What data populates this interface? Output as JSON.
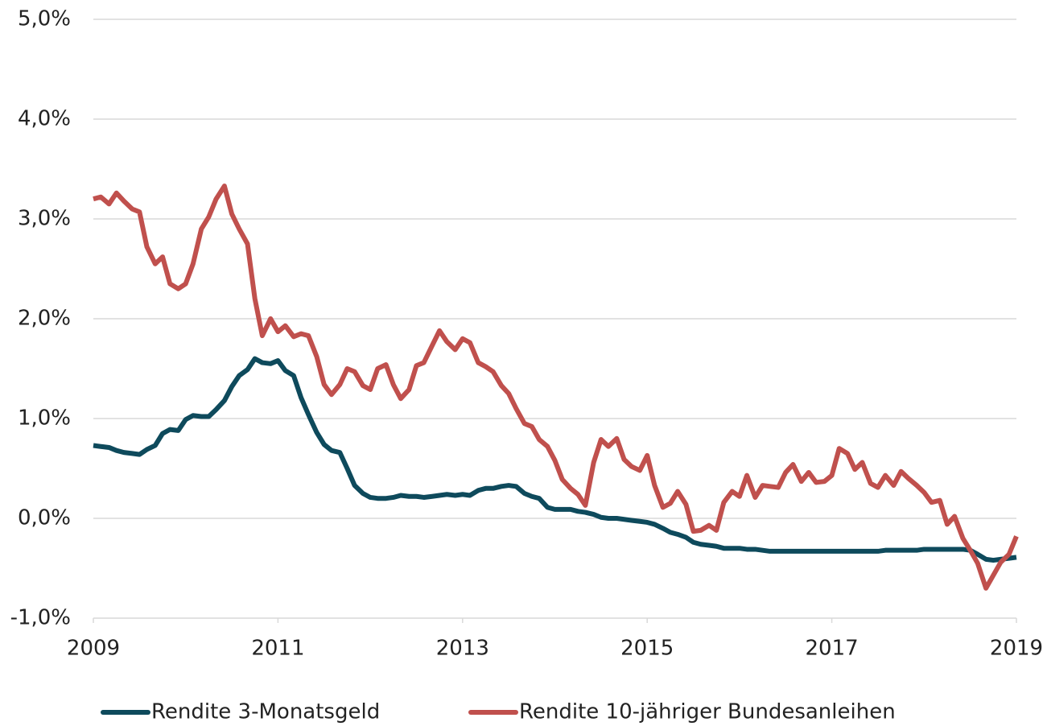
{
  "chart_data": {
    "type": "line",
    "x": [
      2009,
      2009.08,
      2009.17,
      2009.25,
      2009.33,
      2009.42,
      2009.5,
      2009.58,
      2009.67,
      2009.75,
      2009.83,
      2009.92,
      2010,
      2010.08,
      2010.17,
      2010.25,
      2010.33,
      2010.42,
      2010.5,
      2010.58,
      2010.67,
      2010.75,
      2010.83,
      2010.92,
      2011,
      2011.08,
      2011.17,
      2011.25,
      2011.33,
      2011.42,
      2011.5,
      2011.58,
      2011.67,
      2011.75,
      2011.83,
      2011.92,
      2012,
      2012.08,
      2012.17,
      2012.25,
      2012.33,
      2012.42,
      2012.5,
      2012.58,
      2012.67,
      2012.75,
      2012.83,
      2012.92,
      2013,
      2013.08,
      2013.17,
      2013.25,
      2013.33,
      2013.42,
      2013.5,
      2013.58,
      2013.67,
      2013.75,
      2013.83,
      2013.92,
      2014,
      2014.08,
      2014.17,
      2014.25,
      2014.33,
      2014.42,
      2014.5,
      2014.58,
      2014.67,
      2014.75,
      2014.83,
      2014.92,
      2015,
      2015.08,
      2015.17,
      2015.25,
      2015.33,
      2015.42,
      2015.5,
      2015.58,
      2015.67,
      2015.75,
      2015.83,
      2015.92,
      2016,
      2016.08,
      2016.17,
      2016.25,
      2016.33,
      2016.42,
      2016.5,
      2016.58,
      2016.67,
      2016.75,
      2016.83,
      2016.92,
      2017,
      2017.08,
      2017.17,
      2017.25,
      2017.33,
      2017.42,
      2017.5,
      2017.58,
      2017.67,
      2017.75,
      2017.83,
      2017.92,
      2018,
      2018.08,
      2018.17,
      2018.25,
      2018.33,
      2018.42,
      2018.5,
      2018.58,
      2018.67,
      2018.75,
      2018.83,
      2018.92,
      2019
    ],
    "series": [
      {
        "name": "Rendite 3-Monatsgeld",
        "color": "#0e4a5c",
        "values": [
          0.73,
          0.72,
          0.71,
          0.68,
          0.66,
          0.65,
          0.64,
          0.69,
          0.73,
          0.85,
          0.89,
          0.88,
          0.99,
          1.03,
          1.02,
          1.02,
          1.09,
          1.18,
          1.32,
          1.43,
          1.49,
          1.6,
          1.56,
          1.55,
          1.58,
          1.48,
          1.43,
          1.21,
          1.04,
          0.86,
          0.74,
          0.68,
          0.66,
          0.5,
          0.33,
          0.25,
          0.21,
          0.2,
          0.2,
          0.21,
          0.23,
          0.22,
          0.22,
          0.21,
          0.22,
          0.23,
          0.24,
          0.23,
          0.24,
          0.23,
          0.28,
          0.3,
          0.3,
          0.32,
          0.33,
          0.32,
          0.25,
          0.22,
          0.2,
          0.11,
          0.09,
          0.09,
          0.09,
          0.07,
          0.06,
          0.04,
          0.01,
          0,
          0,
          -0.01,
          -0.02,
          -0.03,
          -0.04,
          -0.06,
          -0.1,
          -0.14,
          -0.16,
          -0.19,
          -0.24,
          -0.26,
          -0.27,
          -0.28,
          -0.3,
          -0.3,
          -0.3,
          -0.31,
          -0.31,
          -0.32,
          -0.33,
          -0.33,
          -0.33,
          -0.33,
          -0.33,
          -0.33,
          -0.33,
          -0.33,
          -0.33,
          -0.33,
          -0.33,
          -0.33,
          -0.33,
          -0.33,
          -0.33,
          -0.32,
          -0.32,
          -0.32,
          -0.32,
          -0.32,
          -0.31,
          -0.31,
          -0.31,
          -0.31,
          -0.31,
          -0.31,
          -0.32,
          -0.36,
          -0.41,
          -0.42,
          -0.41,
          -0.4,
          -0.39
        ]
      },
      {
        "name": "Rendite 10-jähriger Bundesanleihen",
        "color": "#c0504d",
        "values": [
          3.2,
          3.22,
          3.15,
          3.26,
          3.18,
          3.1,
          3.07,
          2.72,
          2.55,
          2.62,
          2.35,
          2.3,
          2.35,
          2.55,
          2.9,
          3.02,
          3.2,
          3.33,
          3.05,
          2.9,
          2.75,
          2.2,
          1.83,
          2.0,
          1.87,
          1.93,
          1.82,
          1.85,
          1.83,
          1.62,
          1.34,
          1.24,
          1.34,
          1.5,
          1.47,
          1.33,
          1.29,
          1.5,
          1.54,
          1.34,
          1.2,
          1.29,
          1.53,
          1.56,
          1.73,
          1.88,
          1.77,
          1.69,
          1.8,
          1.76,
          1.56,
          1.52,
          1.47,
          1.33,
          1.25,
          1.1,
          0.95,
          0.92,
          0.79,
          0.72,
          0.58,
          0.39,
          0.3,
          0.24,
          0.13,
          0.56,
          0.79,
          0.72,
          0.8,
          0.59,
          0.52,
          0.48,
          0.63,
          0.33,
          0.11,
          0.15,
          0.27,
          0.14,
          -0.13,
          -0.12,
          -0.07,
          -0.12,
          0.16,
          0.27,
          0.22,
          0.43,
          0.21,
          0.33,
          0.32,
          0.31,
          0.46,
          0.54,
          0.37,
          0.46,
          0.36,
          0.37,
          0.43,
          0.7,
          0.65,
          0.49,
          0.56,
          0.35,
          0.31,
          0.43,
          0.33,
          0.47,
          0.4,
          0.33,
          0.26,
          0.16,
          0.18,
          -0.06,
          0.02,
          -0.2,
          -0.32,
          -0.45,
          -0.7,
          -0.57,
          -0.44,
          -0.36,
          -0.18
        ]
      }
    ],
    "xlim": [
      2009,
      2019
    ],
    "xticks": [
      2009,
      2011,
      2013,
      2015,
      2017,
      2019
    ],
    "ylim": [
      -1,
      5
    ],
    "yticks": [
      {
        "value": -1,
        "label": "-1,0%"
      },
      {
        "value": 0,
        "label": "0,0%"
      },
      {
        "value": 1,
        "label": "1,0%"
      },
      {
        "value": 2,
        "label": "2,0%"
      },
      {
        "value": 3,
        "label": "3,0%"
      },
      {
        "value": 4,
        "label": "4,0%"
      },
      {
        "value": 5,
        "label": "5,0%"
      }
    ],
    "grid": true,
    "legend": "bottom"
  }
}
